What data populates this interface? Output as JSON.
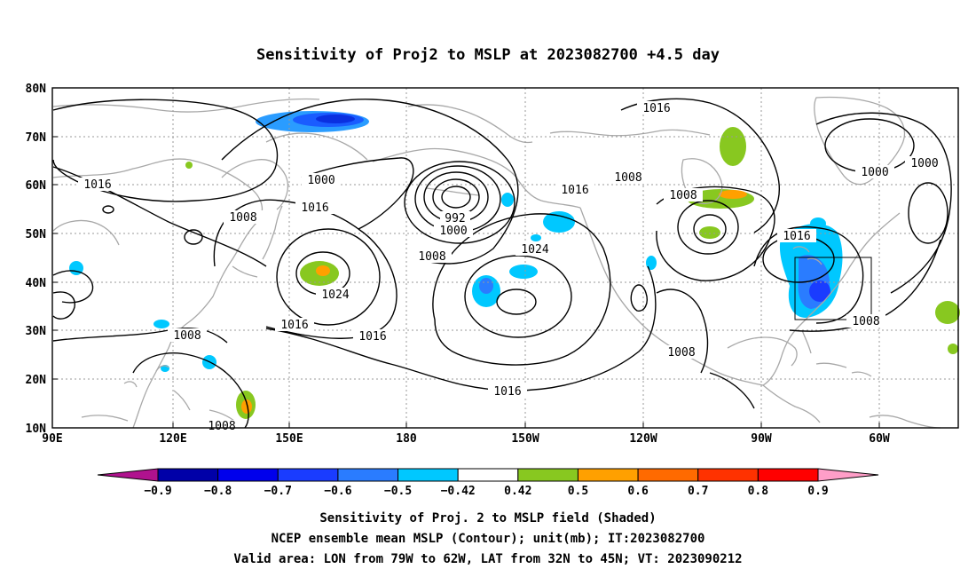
{
  "title": "Sensitivity of Proj2 to MSLP at 2023082700 +4.5 day",
  "map": {
    "lat_ticks": [
      "80N",
      "70N",
      "60N",
      "50N",
      "40N",
      "30N",
      "20N",
      "10N"
    ],
    "lon_ticks": [
      "90E",
      "120E",
      "150E",
      "180",
      "150W",
      "120W",
      "90W",
      "60W"
    ],
    "lon_range": [
      "90E",
      "50W"
    ],
    "lat_range": [
      "10N",
      "80N"
    ],
    "grid": true,
    "contour_labels": [
      {
        "text": "1016",
        "name": "contour-label-1016-nw"
      },
      {
        "text": "1000",
        "name": "contour-label-1000-aleutian-a"
      },
      {
        "text": "1016",
        "name": "contour-label-1016-japan-n"
      },
      {
        "text": "1008",
        "name": "contour-label-1008-japan"
      },
      {
        "text": "992",
        "name": "contour-label-992"
      },
      {
        "text": "1000",
        "name": "contour-label-1000-aleutian-b"
      },
      {
        "text": "1008",
        "name": "contour-label-1008-pacific"
      },
      {
        "text": "1016",
        "name": "contour-label-1016-gulfalaska"
      },
      {
        "text": "1008",
        "name": "contour-label-1008-canada"
      },
      {
        "text": "1016",
        "name": "contour-label-1016-arctic"
      },
      {
        "text": "1008",
        "name": "contour-label-1008-hudson"
      },
      {
        "text": "1000",
        "name": "contour-label-1000-greenland"
      },
      {
        "text": "1000",
        "name": "contour-label-1000-atlantic"
      },
      {
        "text": "1016",
        "name": "contour-label-1016-greatlakes"
      },
      {
        "text": "1024",
        "name": "contour-label-1024-eastpac"
      },
      {
        "text": "1024",
        "name": "contour-label-1024-westpac"
      },
      {
        "text": "1016",
        "name": "contour-label-1016-westpac-s"
      },
      {
        "text": "1016",
        "name": "contour-label-1016-midpac"
      },
      {
        "text": "1008",
        "name": "contour-label-1008-scs"
      },
      {
        "text": "1016",
        "name": "contour-label-1016-subtropic"
      },
      {
        "text": "1008",
        "name": "contour-label-1008-mexico"
      },
      {
        "text": "1008",
        "name": "contour-label-1008-atlantic"
      },
      {
        "text": "1008",
        "name": "contour-label-1008-philippines"
      }
    ],
    "valid_area_box": {
      "lon": [
        "79W",
        "62W"
      ],
      "lat": [
        "32N",
        "45N"
      ]
    }
  },
  "colorbar": {
    "ticks": [
      "-0.9",
      "-0.8",
      "-0.7",
      "-0.6",
      "-0.5",
      "-0.42",
      "0.42",
      "0.5",
      "0.6",
      "0.7",
      "0.8",
      "0.9"
    ],
    "colors": [
      "#b0128e",
      "#0000a8",
      "#0000ec",
      "#1a3cff",
      "#2a7cff",
      "#00c8ff",
      "#ffffff",
      "#88c820",
      "#ffa000",
      "#ff6a00",
      "#ff3200",
      "#ff0000",
      "#ff9ec8"
    ]
  },
  "captions": {
    "line1": "Sensitivity of Proj. 2 to MSLP field (Shaded)",
    "line2": "NCEP ensemble mean MSLP (Contour); unit(mb); IT:2023082700",
    "line3": "Valid area: LON from 79W to 62W, LAT from 32N to 45N; VT: 2023090212"
  }
}
